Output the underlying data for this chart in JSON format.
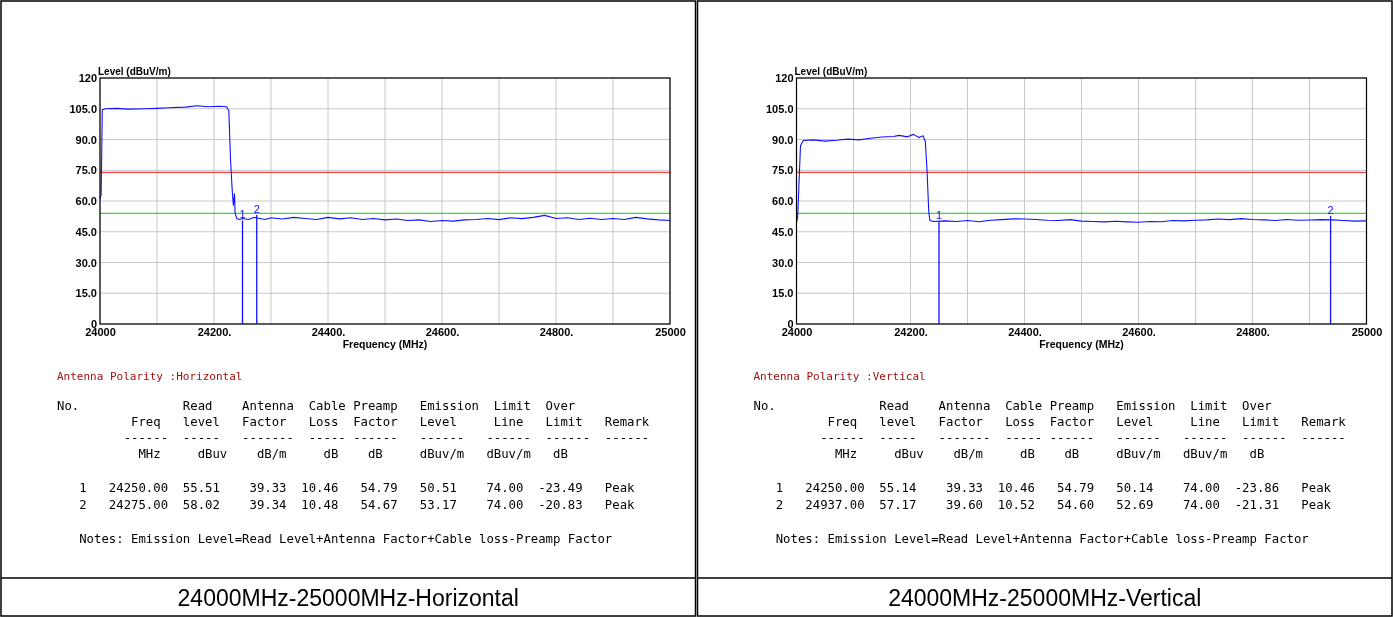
{
  "chart_data": [
    {
      "type": "line",
      "title": "24000MHz-25000MHz-Horizontal",
      "xlabel": "Frequency (MHz)",
      "ylabel": "Level (dBuV/m)",
      "xlim": [
        24000,
        25000
      ],
      "ylim": [
        0,
        120
      ],
      "grid": true,
      "xticks": [
        {
          "value": 24000,
          "label": "24000"
        },
        {
          "value": 24100,
          "label": null
        },
        {
          "value": 24200,
          "label": "24200."
        },
        {
          "value": 24300,
          "label": null
        },
        {
          "value": 24400,
          "label": "24400."
        },
        {
          "value": 24500,
          "label": null
        },
        {
          "value": 24600,
          "label": "24600."
        },
        {
          "value": 24700,
          "label": null
        },
        {
          "value": 24800,
          "label": "24800."
        },
        {
          "value": 24900,
          "label": null
        },
        {
          "value": 25000,
          "label": "25000"
        }
      ],
      "yticks": [
        {
          "value": 0,
          "label": "0"
        },
        {
          "value": 15,
          "label": "15.0"
        },
        {
          "value": 30,
          "label": "30.0"
        },
        {
          "value": 45,
          "label": "45.0"
        },
        {
          "value": 60,
          "label": "60.0"
        },
        {
          "value": 75,
          "label": "75.0"
        },
        {
          "value": 90,
          "label": "90.0"
        },
        {
          "value": 105,
          "label": "105.0"
        },
        {
          "value": 120,
          "label": "120"
        }
      ],
      "series": [
        {
          "color": "#1010ff",
          "x": [
            24000,
            24002,
            24004,
            24010,
            24030,
            24050,
            24080,
            24100,
            24120,
            24150,
            24170,
            24190,
            24210,
            24222,
            24226,
            24229,
            24232,
            24234,
            24236,
            24237,
            24240,
            24245,
            24250,
            24260,
            24270,
            24280,
            24290,
            24300,
            24320,
            24340,
            24360,
            24380,
            24400,
            24420,
            24440,
            24460,
            24480,
            24500,
            24520,
            24540,
            24560,
            24580,
            24600,
            24620,
            24640,
            24660,
            24680,
            24700,
            24720,
            24740,
            24760,
            24780,
            24800,
            24820,
            24840,
            24860,
            24880,
            24900,
            24920,
            24940,
            24960,
            24980,
            25000
          ],
          "values": [
            61,
            63,
            104.5,
            105,
            105.2,
            104.8,
            105,
            105.2,
            105.5,
            105.8,
            106.5,
            106,
            106.2,
            106,
            104,
            80,
            65,
            58,
            63.5,
            54,
            51.5,
            51,
            51.5,
            51,
            52,
            51.5,
            51,
            51.8,
            51.2,
            52,
            51.5,
            51,
            52,
            51.3,
            51.8,
            51,
            51.5,
            50.8,
            51.2,
            50.5,
            50.8,
            50,
            50.5,
            50.2,
            50.8,
            51,
            51.5,
            50.9,
            51.8,
            51.4,
            52,
            53,
            51.5,
            51.8,
            51,
            51.6,
            51,
            51.5,
            51,
            52,
            51.3,
            50.8,
            50.5
          ]
        }
      ],
      "ref_lines": [
        {
          "axis": "y",
          "value": 74,
          "color": "#ff4040"
        },
        {
          "axis": "y",
          "value": 54,
          "color": "#30dd30"
        }
      ],
      "annotations": [
        {
          "text": "1",
          "x": 24250,
          "y": 50.51
        },
        {
          "text": "2",
          "x": 24275,
          "y": 53.17
        },
        "Antenna Polarity :Horizontal",
        "No.              Read    Antenna  Cable Preamp   Emission  Limit  Over",
        "          Freq   level   Factor   Loss  Factor   Level     Line   Limit   Remark",
        "         ------  -----   -------  ----- ------   ------   ------  ------  ------",
        "           MHz     dBuv    dB/m     dB    dB     dBuv/m   dBuv/m   dB",
        "   1   24250.00  55.51    39.33  10.46   54.79   50.51    74.00  -23.49   Peak",
        "   2   24275.00  58.02    39.34  10.48   54.67   53.17    74.00  -20.83   Peak",
        "   Notes: Emission Level=Read Level+Antenna Factor+Cable loss-Preamp Factor"
      ]
    },
    {
      "type": "line",
      "title": "24000MHz-25000MHz-Vertical",
      "xlabel": "Frequency (MHz)",
      "ylabel": "Level (dBuV/m)",
      "xlim": [
        24000,
        25000
      ],
      "ylim": [
        0,
        120
      ],
      "grid": true,
      "xticks": [
        {
          "value": 24000,
          "label": "24000"
        },
        {
          "value": 24100,
          "label": null
        },
        {
          "value": 24200,
          "label": "24200."
        },
        {
          "value": 24300,
          "label": null
        },
        {
          "value": 24400,
          "label": "24400."
        },
        {
          "value": 24500,
          "label": null
        },
        {
          "value": 24600,
          "label": "24600."
        },
        {
          "value": 24700,
          "label": null
        },
        {
          "value": 24800,
          "label": "24800."
        },
        {
          "value": 24900,
          "label": null
        },
        {
          "value": 25000,
          "label": "25000"
        }
      ],
      "yticks": [
        {
          "value": 0,
          "label": "0"
        },
        {
          "value": 15,
          "label": "15.0"
        },
        {
          "value": 30,
          "label": "30.0"
        },
        {
          "value": 45,
          "label": "45.0"
        },
        {
          "value": 60,
          "label": "60.0"
        },
        {
          "value": 75,
          "label": "75.0"
        },
        {
          "value": 90,
          "label": "90.0"
        },
        {
          "value": 105,
          "label": "105.0"
        },
        {
          "value": 120,
          "label": "120"
        }
      ],
      "series": [
        {
          "color": "#1010ff",
          "x": [
            24000,
            24002,
            24004,
            24007,
            24012,
            24030,
            24050,
            24070,
            24090,
            24110,
            24130,
            24150,
            24170,
            24180,
            24195,
            24205,
            24215,
            24222,
            24226,
            24229,
            24232,
            24234,
            24240,
            24260,
            24280,
            24300,
            24320,
            24340,
            24360,
            24380,
            24400,
            24420,
            24440,
            24460,
            24480,
            24500,
            24520,
            24540,
            24560,
            24580,
            24600,
            24620,
            24640,
            24660,
            24680,
            24700,
            24720,
            24740,
            24760,
            24780,
            24800,
            24820,
            24840,
            24860,
            24880,
            24900,
            24920,
            24940,
            24960,
            24980,
            25000
          ],
          "values": [
            49.5,
            52,
            66,
            87,
            89.5,
            89.8,
            89.2,
            89.6,
            90.2,
            89.8,
            90.6,
            91.2,
            91.5,
            92,
            91.3,
            92.5,
            91,
            91.8,
            89,
            75,
            55,
            50.5,
            50,
            50.3,
            50,
            50.5,
            49.9,
            50.6,
            50.9,
            51.3,
            51.2,
            51,
            50.6,
            50.5,
            50.9,
            50.2,
            50,
            49.8,
            50.1,
            49.8,
            49.6,
            50,
            49.9,
            50.5,
            50.3,
            50.6,
            50.8,
            51.2,
            50.9,
            51.4,
            51,
            50.8,
            50.5,
            51,
            50.6,
            50.7,
            50.9,
            50.8,
            50.5,
            50.2,
            50.3
          ]
        }
      ],
      "ref_lines": [
        {
          "axis": "y",
          "value": 74,
          "color": "#ff4040"
        },
        {
          "axis": "y",
          "value": 54,
          "color": "#30dd30"
        }
      ],
      "annotations": [
        {
          "text": "1",
          "x": 24250,
          "y": 50.14
        },
        {
          "text": "2",
          "x": 24937,
          "y": 52.69
        },
        "Antenna Polarity :Vertical",
        "No.              Read    Antenna  Cable Preamp   Emission  Limit  Over",
        "          Freq   level   Factor   Loss  Factor   Level     Line   Limit   Remark",
        "         ------  -----   -------  ----- ------   ------   ------  ------  ------",
        "           MHz     dBuv    dB/m     dB    dB     dBuv/m   dBuv/m   dB",
        "   1   24250.00  55.14    39.33  10.46   54.79   50.14    74.00  -23.86   Peak",
        "   2   24937.00  57.17    39.60  10.52   54.60   52.69    74.00  -21.31   Peak",
        "   Notes: Emission Level=Read Level+Antenna Factor+Cable loss-Preamp Factor"
      ]
    }
  ]
}
